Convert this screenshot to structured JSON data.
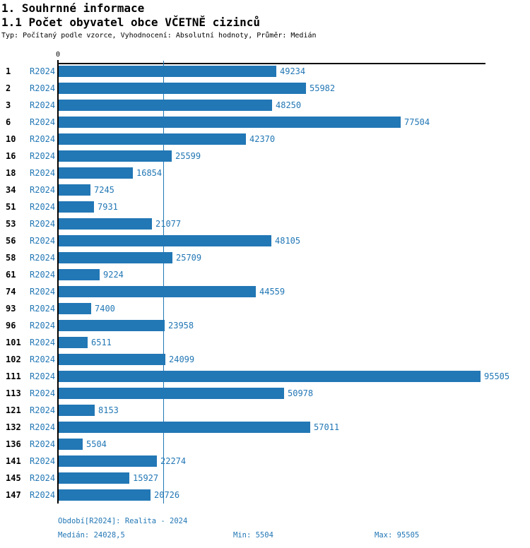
{
  "page": {
    "title1": "1. Souhrnné informace",
    "title2": "1.1 Počet obyvatel obce VČETNĚ cizinců",
    "subtitle": "Typ: Počítaný podle vzorce, Vyhodnocení: Absolutní hodnoty, Průměr: Medián"
  },
  "chart_data": {
    "type": "bar",
    "orientation": "horizontal",
    "title": "1.1 Počet obyvatel obce VČETNĚ cizinců",
    "subtitle": "Typ: Počítaný podle vzorce, Vyhodnocení: Absolutní hodnoty, Průměr: Medián",
    "series_label": "R2024",
    "categories": [
      "1",
      "2",
      "3",
      "6",
      "10",
      "16",
      "18",
      "34",
      "51",
      "53",
      "56",
      "58",
      "61",
      "74",
      "93",
      "96",
      "101",
      "102",
      "111",
      "113",
      "121",
      "132",
      "136",
      "141",
      "145",
      "147"
    ],
    "values": [
      49234,
      55982,
      48250,
      77504,
      42370,
      25599,
      16854,
      7245,
      7931,
      21077,
      48105,
      25709,
      9224,
      44559,
      7400,
      23958,
      6511,
      24099,
      95505,
      50978,
      8153,
      57011,
      5504,
      22274,
      15927,
      20726
    ],
    "xlim": [
      0,
      95505
    ],
    "x_axis_tick_label": "0",
    "median_line_value": 24028.5,
    "median": 24028.5,
    "min": 5504,
    "max": 95505,
    "bar_color": "#2277b5",
    "axis_color": "#000000",
    "label_color": "#2277b5",
    "grid": "median-line-only",
    "legend_position": "none"
  },
  "footer": {
    "period": "Období[R2024]: Realita - 2024",
    "median": "Medián: 24028,5",
    "min": "Min: 5504",
    "max": "Max: 95505"
  }
}
